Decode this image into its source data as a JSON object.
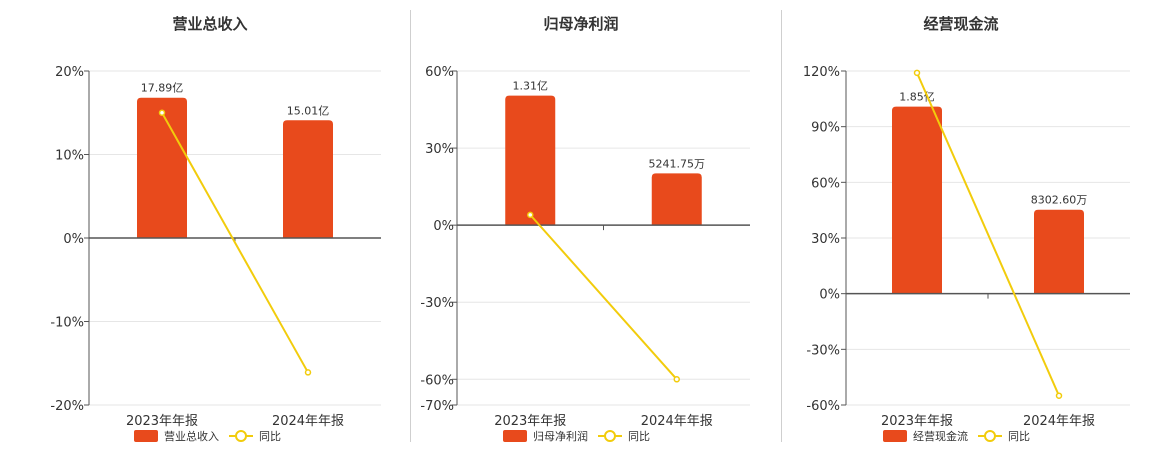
{
  "colors": {
    "bar": "#E84A1C",
    "line": "#F2CC0C",
    "axis": "#555555",
    "grid": "#e6e6e6"
  },
  "chart_data": [
    {
      "type": "bar",
      "title": "营业总收入",
      "categories": [
        "2023年年报",
        "2024年年报"
      ],
      "bar_labels": [
        "17.89亿",
        "15.01亿"
      ],
      "bar_values": [
        17.89,
        15.01
      ],
      "bar_unit": "亿",
      "yoy_percent": [
        15.0,
        -16.1
      ],
      "y_ticks": [
        "20%",
        "10%",
        "0%",
        "-10%",
        "-20%"
      ],
      "ylim": [
        -20,
        20
      ],
      "series": [
        {
          "name": "营业总收入"
        },
        {
          "name": "同比"
        }
      ],
      "legend": "bottom-center",
      "grid": true
    },
    {
      "type": "bar",
      "title": "归母净利润",
      "categories": [
        "2023年年报",
        "2024年年报"
      ],
      "bar_labels": [
        "1.31亿",
        "5241.75万"
      ],
      "bar_values": [
        1.31,
        0.524175
      ],
      "bar_unit": "亿",
      "yoy_percent": [
        4.0,
        -60.0
      ],
      "y_ticks": [
        "60%",
        "30%",
        "0%",
        "-30%",
        "-60%",
        "-70%"
      ],
      "ylim": [
        -70,
        60
      ],
      "series": [
        {
          "name": "归母净利润"
        },
        {
          "name": "同比"
        }
      ],
      "legend": "bottom-center",
      "grid": true
    },
    {
      "type": "bar",
      "title": "经营现金流",
      "categories": [
        "2023年年报",
        "2024年年报"
      ],
      "bar_labels": [
        "1.85亿",
        "8302.60万"
      ],
      "bar_values": [
        1.85,
        0.83026
      ],
      "bar_unit": "亿",
      "yoy_percent": [
        119.0,
        -55.0
      ],
      "y_ticks": [
        "120%",
        "90%",
        "60%",
        "30%",
        "0%",
        "-30%",
        "-60%"
      ],
      "ylim": [
        -60,
        120
      ],
      "series": [
        {
          "name": "经营现金流"
        },
        {
          "name": "同比"
        }
      ],
      "legend": "bottom-center",
      "grid": true
    }
  ]
}
